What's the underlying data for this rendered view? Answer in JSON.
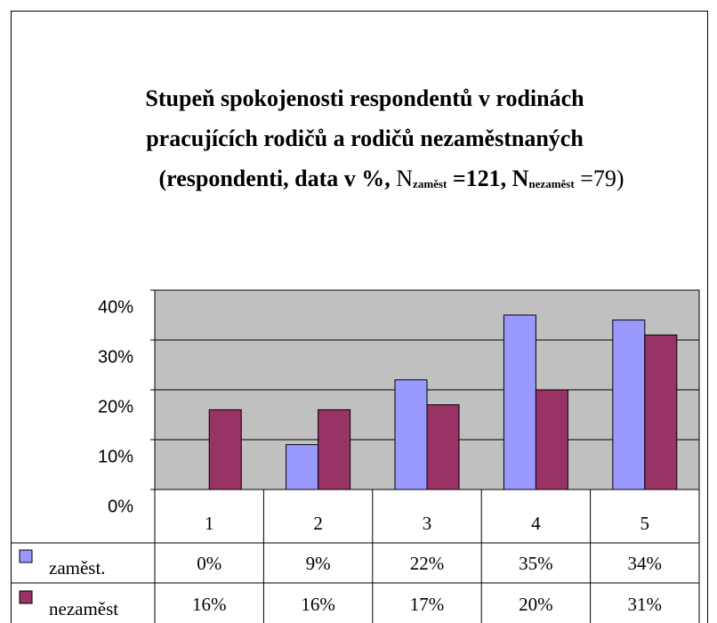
{
  "chart_data": {
    "type": "bar",
    "title": [
      "Stupeň spokojenosti respondentů v rodinách",
      "pracujících rodičů a rodičů nezaměstnaných"
    ],
    "subtitle_parts": [
      "(respondenti, data v %, ",
      "N",
      "zaměst",
      " =121, ",
      "N",
      "nezaměst",
      " =79)"
    ],
    "categories": [
      "1",
      "2",
      "3",
      "4",
      "5"
    ],
    "series": [
      {
        "name": "zaměst.",
        "color": "#9999ff",
        "values": [
          0,
          9,
          22,
          35,
          34
        ],
        "value_labels": [
          "0%",
          "9%",
          "22%",
          "35%",
          "34%"
        ]
      },
      {
        "name": "nezaměst",
        "color": "#993366",
        "values": [
          16,
          16,
          17,
          20,
          31
        ],
        "value_labels": [
          "16%",
          "16%",
          "17%",
          "20%",
          "31%"
        ]
      }
    ],
    "ylim": [
      0,
      40
    ],
    "yticks": [
      {
        "value": 0,
        "label": "0%"
      },
      {
        "value": 10,
        "label": "10%"
      },
      {
        "value": 20,
        "label": "20%"
      },
      {
        "value": 30,
        "label": "30%"
      },
      {
        "value": 40,
        "label": "40%"
      }
    ],
    "grid": true,
    "plot_background": "#c0c0c0"
  }
}
